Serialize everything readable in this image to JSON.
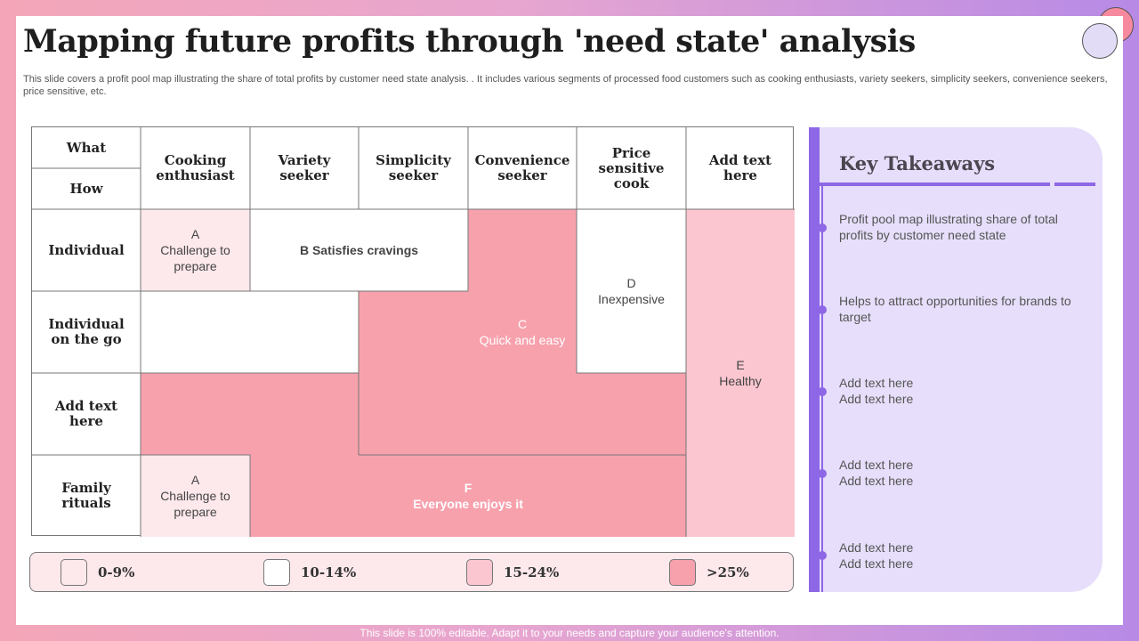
{
  "title": "Mapping future profits through 'need state' analysis",
  "description": "This slide covers a profit pool map illustrating the share of total profits by customer need state analysis. . It includes various segments of processed food customers such as cooking enthusiasts, variety seekers, simplicity seekers, convenience seekers, price sensitive, etc.",
  "grid": {
    "corner_top": "What",
    "corner_bottom": "How",
    "columns": [
      "Cooking enthusiast",
      "Variety seeker",
      "Simplicity seeker",
      "Convenience seeker",
      "Price sensitive cook",
      "Add text here"
    ],
    "rows": [
      "Individual",
      "Individual on the go",
      "Add text here",
      "Family rituals"
    ],
    "regions": {
      "a_top": {
        "letter": "A",
        "text": "Challenge to prepare",
        "band": "0-9%"
      },
      "b": {
        "letter": "B",
        "text": "Satisfies cravings",
        "band": "10-14%"
      },
      "c": {
        "letter": "C",
        "text": "Quick and easy",
        "band": ">25%"
      },
      "d": {
        "letter": "D",
        "text": "Inexpensive",
        "band": "10-14%"
      },
      "e": {
        "letter": "E",
        "text": "Healthy",
        "band": "15-24%"
      },
      "f": {
        "letter": "F",
        "text": "Everyone enjoys it",
        "band": ">25%"
      },
      "a_bottom": {
        "letter": "A",
        "text": "Challenge to prepare",
        "band": "0-9%"
      }
    }
  },
  "legend": [
    {
      "label": "0-9%",
      "color": "#fde8ec"
    },
    {
      "label": "10-14%",
      "color": "#ffffff"
    },
    {
      "label": "15-24%",
      "color": "#fbc6d0"
    },
    {
      "label": ">25%",
      "color": "#f7a1ad"
    }
  ],
  "panel": {
    "title": "Key Takeaways",
    "items": [
      {
        "lines": [
          "Profit pool map illustrating share of total profits by customer need state"
        ]
      },
      {
        "lines": [
          "Helps to attract opportunities for brands to target"
        ]
      },
      {
        "lines": [
          "Add text here",
          "Add text here"
        ]
      },
      {
        "lines": [
          "Add text here",
          "Add text here"
        ]
      },
      {
        "lines": [
          "Add text here",
          "Add text here"
        ]
      }
    ]
  },
  "colors": {
    "pink_light": "#fde8ec",
    "pink_mid": "#fbc6d0",
    "pink_strong": "#f7a1ad",
    "accent_purple": "#8e67e6",
    "panel_bg": "#e6defa"
  },
  "footer": "This slide is 100% editable. Adapt it to your needs and capture your audience's attention."
}
